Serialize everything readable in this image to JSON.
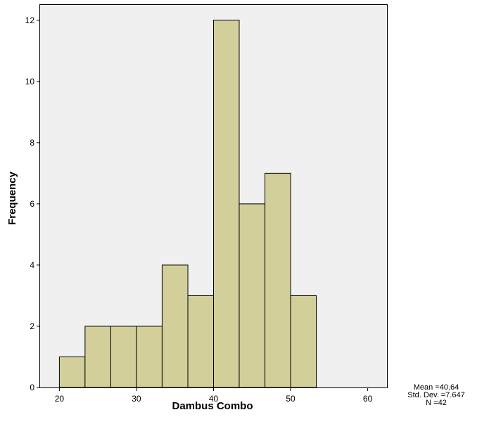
{
  "chart_data": {
    "type": "bar",
    "xlabel": "Dambus Combo",
    "ylabel": "Frequency",
    "bins": [
      {
        "start": 20.0,
        "end": 23.33,
        "count": 1
      },
      {
        "start": 23.33,
        "end": 26.67,
        "count": 2
      },
      {
        "start": 26.67,
        "end": 30.0,
        "count": 2
      },
      {
        "start": 30.0,
        "end": 33.33,
        "count": 2
      },
      {
        "start": 33.33,
        "end": 36.67,
        "count": 4
      },
      {
        "start": 36.67,
        "end": 40.0,
        "count": 3
      },
      {
        "start": 40.0,
        "end": 43.33,
        "count": 12
      },
      {
        "start": 43.33,
        "end": 46.67,
        "count": 6
      },
      {
        "start": 46.67,
        "end": 50.0,
        "count": 7
      },
      {
        "start": 50.0,
        "end": 53.33,
        "count": 3
      }
    ],
    "xlim": [
      17.5,
      62.5
    ],
    "ylim": [
      0,
      12.5
    ],
    "xticks": [
      "20",
      "30",
      "40",
      "50",
      "60"
    ],
    "yticks": [
      "0",
      "2",
      "4",
      "6",
      "8",
      "10",
      "12"
    ],
    "grid": false,
    "colors": {
      "bar_fill": "#d3cf9b",
      "plot_background": "#f0f0f0"
    },
    "stats": {
      "mean": "Mean =40.64",
      "std_dev": "Std. Dev. =7.647",
      "n": "N =42"
    }
  }
}
